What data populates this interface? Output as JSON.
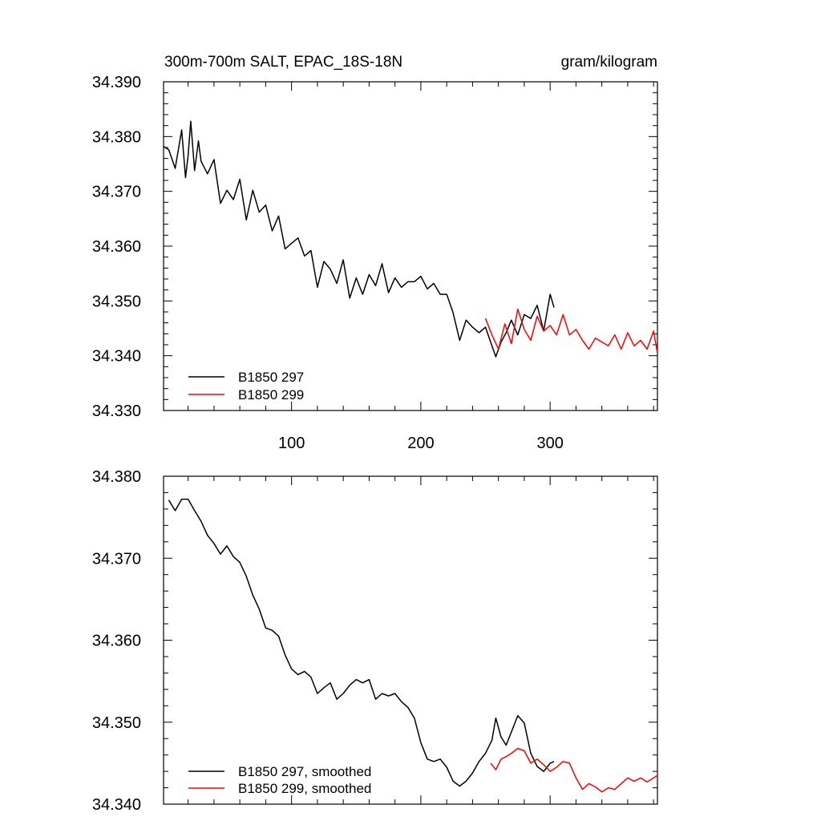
{
  "chart_data": [
    {
      "type": "line",
      "title": "300m-700m SALT, EPAC_18S-18N",
      "units": "gram/kilogram",
      "xlim": [
        1,
        383
      ],
      "ylim": [
        34.33,
        34.39
      ],
      "y_ticks": [
        "34.330",
        "34.340",
        "34.350",
        "34.360",
        "34.370",
        "34.380",
        "34.390"
      ],
      "x_ticks": [
        "100",
        "200",
        "300"
      ],
      "series": [
        {
          "name": "B1850 297",
          "color": "#000000",
          "x": [
            1,
            5,
            10,
            15,
            18,
            20,
            22,
            25,
            28,
            30,
            35,
            40,
            45,
            50,
            55,
            60,
            65,
            70,
            75,
            80,
            85,
            90,
            95,
            100,
            105,
            110,
            115,
            120,
            125,
            130,
            135,
            140,
            145,
            150,
            155,
            160,
            165,
            170,
            175,
            180,
            185,
            190,
            195,
            200,
            205,
            210,
            215,
            220,
            225,
            230,
            235,
            240,
            245,
            250,
            255,
            258,
            262,
            266,
            270,
            275,
            280,
            285,
            290,
            295,
            300,
            303
          ],
          "values": [
            34.3782,
            34.3776,
            34.3742,
            34.3812,
            34.3725,
            34.3765,
            34.3828,
            34.3738,
            34.3792,
            34.3755,
            34.3732,
            34.3758,
            34.3678,
            34.3702,
            34.3685,
            34.3722,
            34.3648,
            34.3702,
            34.3662,
            34.3675,
            34.3628,
            34.3655,
            34.3595,
            34.3605,
            34.3615,
            34.3582,
            34.3592,
            34.3525,
            34.3572,
            34.3558,
            34.3532,
            34.3575,
            34.3505,
            34.3542,
            34.3512,
            34.3548,
            34.3528,
            34.3568,
            34.3515,
            34.3542,
            34.3525,
            34.3535,
            34.3535,
            34.3545,
            34.3522,
            34.3532,
            34.3512,
            34.3512,
            34.3478,
            34.3428,
            34.3465,
            34.3452,
            34.3442,
            34.3452,
            34.3418,
            34.3398,
            34.3425,
            34.3442,
            34.3465,
            34.3438,
            34.3475,
            34.3468,
            34.3492,
            34.3445,
            34.3512,
            34.3488
          ]
        },
        {
          "name": "B1850 299",
          "color": "#ff0000",
          "x": [
            250,
            255,
            260,
            265,
            270,
            275,
            280,
            285,
            290,
            295,
            300,
            305,
            310,
            315,
            320,
            325,
            330,
            335,
            340,
            345,
            350,
            355,
            360,
            365,
            370,
            375,
            380,
            383
          ],
          "values": [
            34.3468,
            34.3438,
            34.3412,
            34.3458,
            34.3422,
            34.3485,
            34.3448,
            34.3428,
            34.3472,
            34.3445,
            34.3455,
            34.3438,
            34.3475,
            34.3438,
            34.3448,
            34.3428,
            34.3412,
            34.3432,
            34.3425,
            34.3418,
            34.3438,
            34.3412,
            34.3442,
            34.3418,
            34.3428,
            34.3412,
            34.3445,
            34.3405
          ]
        }
      ]
    },
    {
      "type": "line",
      "xlim": [
        1,
        383
      ],
      "ylim": [
        34.34,
        34.38
      ],
      "y_ticks": [
        "34.340",
        "34.350",
        "34.360",
        "34.370",
        "34.380"
      ],
      "x_ticks": [],
      "series": [
        {
          "name": "B1850 297, smoothed",
          "color": "#000000",
          "x": [
            5,
            10,
            15,
            20,
            25,
            30,
            35,
            40,
            45,
            50,
            55,
            60,
            65,
            70,
            75,
            80,
            85,
            90,
            95,
            100,
            105,
            110,
            115,
            120,
            125,
            130,
            135,
            140,
            145,
            150,
            155,
            160,
            165,
            170,
            175,
            180,
            185,
            190,
            195,
            200,
            205,
            210,
            215,
            220,
            225,
            230,
            235,
            240,
            245,
            250,
            255,
            258,
            262,
            266,
            270,
            275,
            280,
            285,
            290,
            295,
            300,
            303
          ],
          "values": [
            34.3771,
            34.3758,
            34.3772,
            34.3772,
            34.3758,
            34.3745,
            34.3728,
            34.3718,
            34.3705,
            34.3715,
            34.3702,
            34.3695,
            34.3678,
            34.3655,
            34.3638,
            34.3615,
            34.3612,
            34.3605,
            34.3582,
            34.3565,
            34.3558,
            34.3562,
            34.3555,
            34.3535,
            34.3542,
            34.3548,
            34.3528,
            34.3535,
            34.3545,
            34.3552,
            34.3548,
            34.3552,
            34.3528,
            34.3535,
            34.3532,
            34.3535,
            34.3525,
            34.3518,
            34.3505,
            34.3475,
            34.3455,
            34.3452,
            34.3455,
            34.3445,
            34.3428,
            34.3422,
            34.3428,
            34.3438,
            34.3452,
            34.3462,
            34.3478,
            34.3505,
            34.3482,
            34.3472,
            34.3488,
            34.3508,
            34.3499,
            34.3462,
            34.3446,
            34.344,
            34.345,
            34.3452
          ]
        },
        {
          "name": "B1850 299, smoothed",
          "color": "#ff0000",
          "x": [
            254,
            258,
            262,
            266,
            270,
            275,
            280,
            285,
            290,
            295,
            300,
            305,
            310,
            315,
            320,
            325,
            330,
            335,
            340,
            345,
            350,
            355,
            360,
            365,
            370,
            375,
            380,
            383
          ],
          "values": [
            34.345,
            34.3442,
            34.3455,
            34.3458,
            34.3462,
            34.3468,
            34.3465,
            34.345,
            34.3455,
            34.3448,
            34.344,
            34.3445,
            34.3452,
            34.345,
            34.3432,
            34.3418,
            34.3425,
            34.3421,
            34.3415,
            34.342,
            34.3418,
            34.3425,
            34.3432,
            34.3428,
            34.3432,
            34.3427,
            34.3432,
            34.3435
          ]
        }
      ]
    }
  ]
}
